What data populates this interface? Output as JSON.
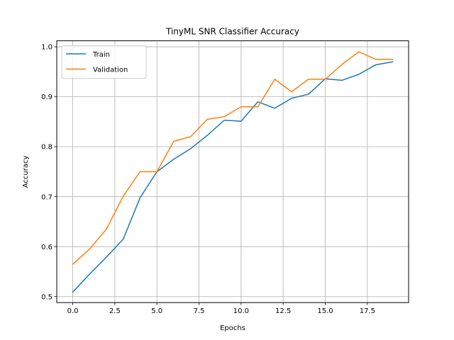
{
  "chart_data": {
    "type": "line",
    "title": "TinyML SNR Classifier Accuracy",
    "xlabel": "Epochs",
    "ylabel": "Accuracy",
    "xlim": [
      -0.95,
      19.95
    ],
    "ylim": [
      0.488,
      1.012
    ],
    "xticks": [
      0.0,
      2.5,
      5.0,
      7.5,
      10.0,
      12.5,
      15.0,
      17.5
    ],
    "xtick_labels": [
      "0.0",
      "2.5",
      "5.0",
      "7.5",
      "10.0",
      "12.5",
      "15.0",
      "17.5"
    ],
    "yticks": [
      0.5,
      0.6,
      0.7,
      0.8,
      0.9,
      1.0
    ],
    "ytick_labels": [
      "0.5",
      "0.6",
      "0.7",
      "0.8",
      "0.9",
      "1.0"
    ],
    "grid": true,
    "legend_position": "top-left",
    "x": [
      0,
      1,
      2,
      3,
      4,
      5,
      6,
      7,
      8,
      9,
      10,
      11,
      12,
      13,
      14,
      15,
      16,
      17,
      18,
      19
    ],
    "series": [
      {
        "name": "Train",
        "color": "#1f77b4",
        "values": [
          0.509,
          0.545,
          0.579,
          0.615,
          0.698,
          0.75,
          0.775,
          0.796,
          0.823,
          0.853,
          0.851,
          0.89,
          0.877,
          0.897,
          0.905,
          0.936,
          0.933,
          0.945,
          0.964,
          0.97
        ]
      },
      {
        "name": "Validation",
        "color": "#ff7f0e",
        "values": [
          0.565,
          0.595,
          0.635,
          0.701,
          0.75,
          0.75,
          0.811,
          0.82,
          0.855,
          0.86,
          0.88,
          0.88,
          0.935,
          0.91,
          0.935,
          0.935,
          0.965,
          0.99,
          0.975,
          0.975
        ]
      }
    ]
  }
}
